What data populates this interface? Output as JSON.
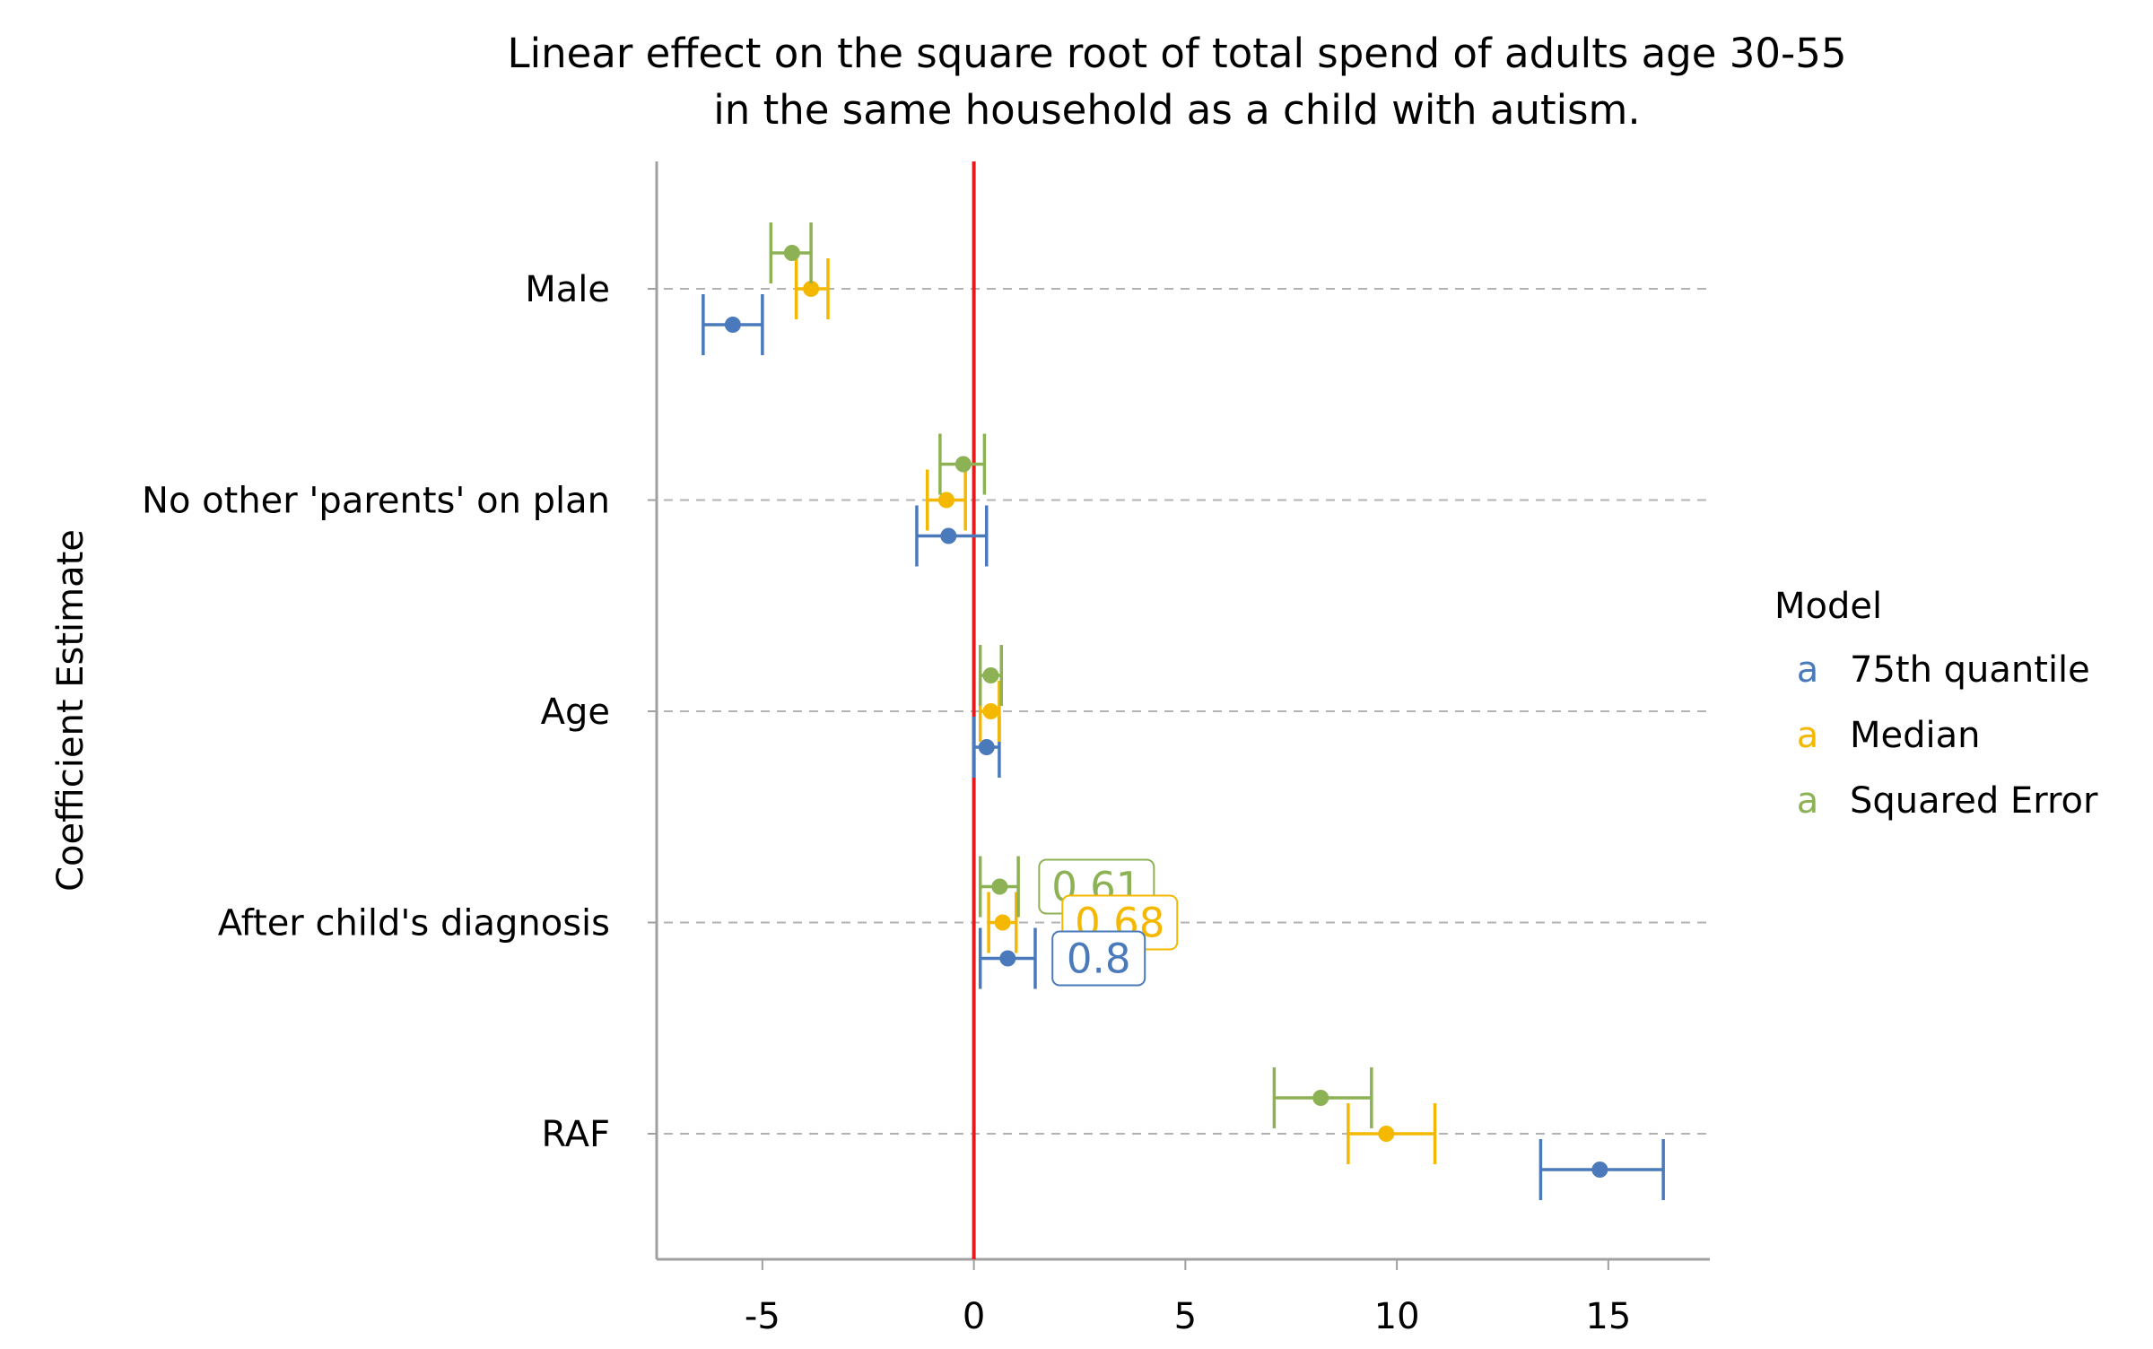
{
  "chart_data": {
    "type": "forest",
    "title_lines": [
      "Linear effect on the square root of total spend of adults age 30-55",
      "in the same household as a child with autism."
    ],
    "ylabel": "Coefficient Estimate",
    "xlabel": "",
    "xlim": [
      -7.5,
      17.4
    ],
    "x_ticks": [
      -5,
      0,
      5,
      10,
      15
    ],
    "x_tick_labels": [
      "-5",
      "0",
      "5",
      "10",
      "15"
    ],
    "reference_line": {
      "x": 0,
      "color": "#e41a1c"
    },
    "grid": "horizontal-dashed",
    "categories": [
      "Male",
      "No other 'parents' on plan",
      "Age",
      "After child's diagnosis",
      "RAF"
    ],
    "legend": {
      "title": "Model",
      "position": "right",
      "glyph": "a",
      "entries": [
        {
          "name": "75th quantile",
          "color": "#4a7abb"
        },
        {
          "name": "Median",
          "color": "#f5b800"
        },
        {
          "name": "Squared Error",
          "color": "#8db255"
        }
      ]
    },
    "series": [
      {
        "name": "75th quantile",
        "color": "#4a7abb",
        "points": [
          {
            "category": "Male",
            "estimate": -5.7,
            "low": -6.4,
            "high": -5.0
          },
          {
            "category": "No other 'parents' on plan",
            "estimate": -0.6,
            "low": -1.35,
            "high": 0.3
          },
          {
            "category": "Age",
            "estimate": 0.3,
            "low": 0.0,
            "high": 0.6
          },
          {
            "category": "After child's diagnosis",
            "estimate": 0.8,
            "low": 0.15,
            "high": 1.45
          },
          {
            "category": "RAF",
            "estimate": 14.8,
            "low": 13.4,
            "high": 16.3
          }
        ]
      },
      {
        "name": "Median",
        "color": "#f5b800",
        "points": [
          {
            "category": "Male",
            "estimate": -3.85,
            "low": -4.2,
            "high": -3.45
          },
          {
            "category": "No other 'parents' on plan",
            "estimate": -0.65,
            "low": -1.1,
            "high": -0.2
          },
          {
            "category": "Age",
            "estimate": 0.4,
            "low": 0.15,
            "high": 0.6
          },
          {
            "category": "After child's diagnosis",
            "estimate": 0.68,
            "low": 0.35,
            "high": 1.0
          },
          {
            "category": "RAF",
            "estimate": 9.75,
            "low": 8.85,
            "high": 10.9
          }
        ]
      },
      {
        "name": "Squared Error",
        "color": "#8db255",
        "points": [
          {
            "category": "Male",
            "estimate": -4.3,
            "low": -4.8,
            "high": -3.85
          },
          {
            "category": "No other 'parents' on plan",
            "estimate": -0.25,
            "low": -0.8,
            "high": 0.25
          },
          {
            "category": "Age",
            "estimate": 0.4,
            "low": 0.15,
            "high": 0.65
          },
          {
            "category": "After child's diagnosis",
            "estimate": 0.61,
            "low": 0.15,
            "high": 1.05
          },
          {
            "category": "RAF",
            "estimate": 8.2,
            "low": 7.1,
            "high": 9.4
          }
        ]
      }
    ],
    "annotations": [
      {
        "category": "After child's diagnosis",
        "series": "Squared Error",
        "text": "0.61",
        "x": 2.9
      },
      {
        "category": "After child's diagnosis",
        "series": "Median",
        "text": "0.68",
        "x": 3.45
      },
      {
        "category": "After child's diagnosis",
        "series": "75th quantile",
        "text": "0.8",
        "x": 2.95
      }
    ]
  }
}
